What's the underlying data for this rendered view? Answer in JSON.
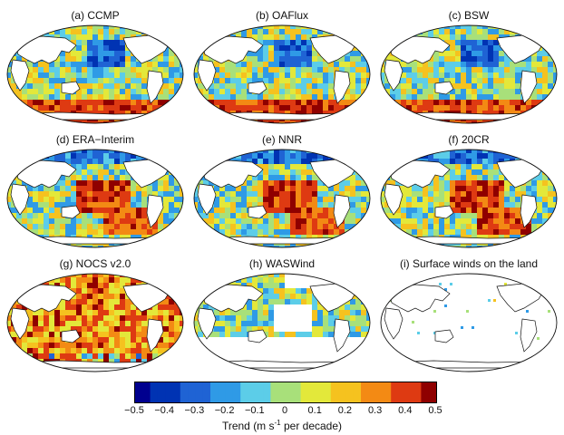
{
  "panels": [
    {
      "id": "a",
      "title": "(a) CCMP",
      "style": "mixed",
      "seed": 11
    },
    {
      "id": "b",
      "title": "(b) OAFlux",
      "style": "mixed",
      "seed": 23
    },
    {
      "id": "c",
      "title": "(c) BSW",
      "style": "mixed",
      "seed": 37
    },
    {
      "id": "d",
      "title": "(d) ERA−Interim",
      "style": "pacific_red",
      "seed": 41
    },
    {
      "id": "e",
      "title": "(e) NNR",
      "style": "pacific_red",
      "seed": 53
    },
    {
      "id": "f",
      "title": "(f) 20CR",
      "style": "pacific_red",
      "seed": 67
    },
    {
      "id": "g",
      "title": "(g) NOCS v2.0",
      "style": "sparse_red",
      "seed": 71
    },
    {
      "id": "h",
      "title": "(h) WASWind",
      "style": "sparse_mixed",
      "seed": 83
    },
    {
      "id": "i",
      "title": "(i) Surface winds on the land",
      "style": "land_stations",
      "seed": 97
    }
  ],
  "colorbar": {
    "ticks": [
      "−0.5",
      "−0.4",
      "−0.3",
      "−0.2",
      "−0.1",
      "0",
      "0.1",
      "0.2",
      "0.3",
      "0.4",
      "0.5"
    ],
    "label_prefix": "Trend (m s",
    "label_sup": "-1",
    "label_suffix": " per decade)",
    "colors": [
      "#00008f",
      "#0033b3",
      "#1f63d4",
      "#2f9ae6",
      "#5ccde8",
      "#a8e07a",
      "#e3e83a",
      "#f5c21f",
      "#f38a14",
      "#de3a12",
      "#8f0000"
    ]
  }
}
